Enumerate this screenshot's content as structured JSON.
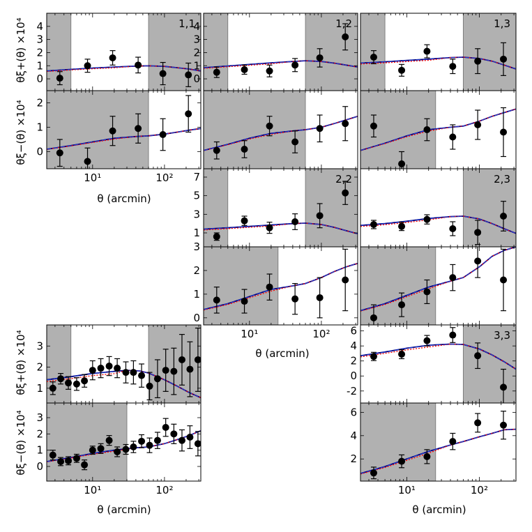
{
  "figure": {
    "xlabel": "θ (arcmin)",
    "ylabel_plus": "θξ+(θ) ×10⁴",
    "ylabel_minus": "θξ−(θ) ×10⁴"
  },
  "chart_data": [
    {
      "type": "scatter",
      "id": "p11",
      "title": "1,1",
      "row": "plus",
      "xlim": [
        2.3,
        320
      ],
      "ylim": [
        -0.9,
        5
      ],
      "yticks": [
        0,
        1,
        2,
        3,
        4
      ],
      "shade": [
        [
          2.3,
          5
        ],
        [
          60,
          320
        ]
      ],
      "x": [
        3.5,
        8.5,
        19,
        43,
        95,
        215
      ],
      "y": [
        0.05,
        1.0,
        1.6,
        1.05,
        0.4,
        0.3
      ],
      "err": [
        0.5,
        0.5,
        0.55,
        0.6,
        0.85,
        0.9
      ],
      "model_x": [
        2.3,
        5,
        10,
        20,
        40,
        60,
        100,
        150,
        220,
        320
      ],
      "model_y": [
        0.6,
        0.72,
        0.82,
        0.9,
        0.97,
        0.99,
        0.95,
        0.85,
        0.75,
        0.6
      ]
    },
    {
      "type": "scatter",
      "id": "m11",
      "row": "minus",
      "xlim": [
        2.3,
        320
      ],
      "ylim": [
        -0.7,
        2.5
      ],
      "yticks": [
        0,
        1,
        2
      ],
      "shade": [
        [
          2.3,
          60
        ]
      ],
      "x": [
        3.5,
        8.5,
        19,
        43,
        95,
        215
      ],
      "y": [
        -0.05,
        -0.4,
        0.85,
        0.95,
        0.7,
        1.55
      ],
      "err": [
        0.55,
        0.55,
        0.6,
        0.6,
        0.65,
        0.75
      ],
      "model_x": [
        2.3,
        5,
        10,
        20,
        40,
        60,
        100,
        150,
        220,
        320
      ],
      "model_y": [
        0.1,
        0.25,
        0.4,
        0.55,
        0.62,
        0.65,
        0.72,
        0.8,
        0.88,
        0.95
      ],
      "xticks": [
        10,
        100
      ],
      "xticklabels": [
        "10¹",
        "10²"
      ]
    },
    {
      "type": "scatter",
      "id": "p12",
      "title": "1,2",
      "row": "plus",
      "xlim": [
        2.3,
        320
      ],
      "ylim": [
        -0.9,
        5
      ],
      "yticks": [
        0,
        1,
        2,
        3,
        4
      ],
      "shade": [
        [
          2.3,
          5
        ],
        [
          60,
          320
        ]
      ],
      "x": [
        3.5,
        8.5,
        19,
        43,
        95,
        215
      ],
      "y": [
        0.5,
        0.7,
        0.6,
        1.05,
        1.6,
        3.2
      ],
      "err": [
        0.4,
        0.35,
        0.45,
        0.5,
        0.7,
        1.0
      ],
      "model_x": [
        2.3,
        5,
        10,
        20,
        40,
        60,
        100,
        150,
        220,
        320
      ],
      "model_y": [
        0.85,
        0.98,
        1.1,
        1.22,
        1.32,
        1.38,
        1.32,
        1.2,
        1.05,
        0.9
      ]
    },
    {
      "type": "scatter",
      "id": "m12",
      "row": "minus",
      "xlim": [
        2.3,
        320
      ],
      "ylim": [
        -0.7,
        2.5
      ],
      "yticks": [],
      "shade": [
        [
          2.3,
          60
        ]
      ],
      "x": [
        3.5,
        8.5,
        19,
        43,
        95,
        215
      ],
      "y": [
        0.05,
        0.1,
        1.05,
        0.4,
        0.95,
        1.15
      ],
      "err": [
        0.35,
        0.35,
        0.4,
        0.45,
        0.55,
        0.7
      ],
      "model_x": [
        2.3,
        5,
        10,
        20,
        40,
        60,
        100,
        150,
        220,
        320
      ],
      "model_y": [
        0.05,
        0.3,
        0.55,
        0.75,
        0.85,
        0.9,
        1.0,
        1.15,
        1.3,
        1.45
      ]
    },
    {
      "type": "scatter",
      "id": "p13",
      "title": "1,3",
      "row": "plus",
      "xlim": [
        2.3,
        320
      ],
      "ylim": [
        -0.9,
        5
      ],
      "yticks": [],
      "shade": [
        [
          2.3,
          5
        ],
        [
          60,
          320
        ]
      ],
      "x": [
        3.5,
        8.5,
        19,
        43,
        95,
        215
      ],
      "y": [
        1.65,
        0.65,
        2.1,
        0.95,
        1.35,
        1.5
      ],
      "err": [
        0.5,
        0.45,
        0.5,
        0.55,
        0.95,
        1.25
      ],
      "model_x": [
        2.3,
        5,
        10,
        20,
        40,
        60,
        100,
        150,
        220,
        320
      ],
      "model_y": [
        1.2,
        1.3,
        1.4,
        1.5,
        1.62,
        1.65,
        1.55,
        1.35,
        1.05,
        0.75
      ]
    },
    {
      "type": "scatter",
      "id": "m13",
      "row": "minus",
      "xlim": [
        2.3,
        320
      ],
      "ylim": [
        -0.7,
        2.5
      ],
      "yticks": [],
      "shade": [
        [
          2.3,
          25
        ]
      ],
      "x": [
        3.5,
        8.5,
        19,
        43,
        95,
        215
      ],
      "y": [
        1.05,
        -0.5,
        0.9,
        0.6,
        1.1,
        0.8
      ],
      "err": [
        0.45,
        0.5,
        0.45,
        0.5,
        0.6,
        1.0
      ],
      "model_x": [
        2.3,
        5,
        10,
        20,
        40,
        60,
        100,
        150,
        220,
        320
      ],
      "model_y": [
        0.05,
        0.35,
        0.65,
        0.9,
        1.0,
        1.05,
        1.25,
        1.45,
        1.6,
        1.75
      ]
    },
    {
      "type": "scatter",
      "id": "p22",
      "title": "2,2",
      "row": "plus",
      "xlim": [
        2.3,
        320
      ],
      "ylim": [
        -0.5,
        7.9
      ],
      "yticks": [
        1,
        3,
        5,
        7
      ],
      "shade": [
        [
          2.3,
          5
        ],
        [
          60,
          320
        ]
      ],
      "x": [
        3.5,
        8.5,
        19,
        43,
        95,
        215
      ],
      "y": [
        0.6,
        2.3,
        1.55,
        2.2,
        2.85,
        5.3
      ],
      "err": [
        0.4,
        0.5,
        0.6,
        0.85,
        1.3,
        1.25
      ],
      "model_x": [
        2.3,
        5,
        10,
        20,
        40,
        60,
        100,
        150,
        220,
        320
      ],
      "model_y": [
        1.4,
        1.55,
        1.7,
        1.85,
        2.0,
        2.05,
        1.9,
        1.6,
        1.25,
        0.9
      ]
    },
    {
      "type": "scatter",
      "id": "m22",
      "row": "minus",
      "xlim": [
        2.3,
        320
      ],
      "ylim": [
        -0.3,
        3.0
      ],
      "yticks": [
        0,
        1,
        2,
        3
      ],
      "ytickslabels": [
        "0",
        "1",
        "2",
        "3"
      ],
      "shade": [
        [
          2.3,
          25
        ]
      ],
      "x": [
        3.5,
        8.5,
        19,
        43,
        95,
        215
      ],
      "y": [
        0.75,
        0.7,
        1.3,
        0.8,
        0.85,
        1.6
      ],
      "err": [
        0.55,
        0.5,
        0.55,
        0.65,
        0.85,
        1.3
      ],
      "model_x": [
        2.3,
        5,
        10,
        20,
        40,
        60,
        100,
        150,
        220,
        320
      ],
      "model_y": [
        0.35,
        0.6,
        0.9,
        1.2,
        1.35,
        1.45,
        1.7,
        1.95,
        2.15,
        2.3
      ],
      "xticks": [
        10,
        100
      ],
      "xticklabels": [
        "10¹",
        "10²"
      ]
    },
    {
      "type": "scatter",
      "id": "p23",
      "title": "2,3",
      "row": "plus",
      "xlim": [
        2.3,
        320
      ],
      "ylim": [
        -0.5,
        7.9
      ],
      "yticks": [],
      "shade": [
        [
          60,
          320
        ]
      ],
      "x": [
        3.5,
        8.5,
        19,
        43,
        95,
        215
      ],
      "y": [
        1.9,
        1.7,
        2.45,
        1.45,
        1.05,
        2.8
      ],
      "err": [
        0.45,
        0.45,
        0.5,
        0.75,
        1.3,
        1.6
      ],
      "model_x": [
        2.3,
        5,
        10,
        20,
        40,
        60,
        100,
        150,
        220,
        320
      ],
      "model_y": [
        1.8,
        2.0,
        2.25,
        2.55,
        2.75,
        2.8,
        2.5,
        2.0,
        1.45,
        0.95
      ]
    },
    {
      "type": "scatter",
      "id": "m23",
      "row": "minus",
      "xlim": [
        2.3,
        320
      ],
      "ylim": [
        -0.3,
        3.0
      ],
      "yticks": [],
      "shade": [
        [
          2.3,
          25
        ]
      ],
      "x": [
        3.5,
        8.5,
        19,
        43,
        95,
        215
      ],
      "y": [
        0.0,
        0.55,
        1.1,
        1.7,
        2.4,
        1.6
      ],
      "err": [
        0.55,
        0.5,
        0.5,
        0.55,
        0.7,
        1.3
      ],
      "model_x": [
        2.3,
        5,
        10,
        20,
        40,
        60,
        100,
        150,
        220,
        320
      ],
      "model_y": [
        0.3,
        0.6,
        0.95,
        1.3,
        1.55,
        1.7,
        2.15,
        2.6,
        2.85,
        3.0
      ]
    },
    {
      "type": "scatter",
      "id": "p33",
      "title": "3,3",
      "row": "plus",
      "xlim": [
        2.3,
        320
      ],
      "ylim": [
        -3.6,
        6.8
      ],
      "yticks": [
        -2,
        0,
        2,
        4,
        6
      ],
      "shade": [
        [
          60,
          320
        ]
      ],
      "x": [
        3.5,
        8.5,
        19,
        43,
        95,
        215
      ],
      "y": [
        2.6,
        2.9,
        4.7,
        5.45,
        2.7,
        -1.5
      ],
      "err": [
        0.55,
        0.6,
        0.7,
        1.0,
        1.7,
        2.4
      ],
      "model_x": [
        2.3,
        5,
        10,
        20,
        40,
        60,
        100,
        150,
        220,
        320
      ],
      "model_y": [
        2.7,
        3.2,
        3.7,
        4.1,
        4.25,
        4.2,
        3.6,
        2.8,
        1.9,
        0.9
      ]
    },
    {
      "type": "scatter",
      "id": "m33",
      "row": "minus",
      "xlim": [
        2.3,
        320
      ],
      "ylim": [
        0.1,
        6.8
      ],
      "yticks": [
        2,
        4,
        6
      ],
      "shade": [
        [
          2.3,
          25
        ]
      ],
      "x": [
        3.5,
        8.5,
        19,
        43,
        95,
        215
      ],
      "y": [
        0.8,
        1.8,
        2.2,
        3.5,
        5.1,
        4.9
      ],
      "err": [
        0.5,
        0.55,
        0.6,
        0.7,
        0.8,
        1.2
      ],
      "model_x": [
        2.3,
        5,
        10,
        20,
        40,
        60,
        100,
        150,
        220,
        320
      ],
      "model_y": [
        0.75,
        1.35,
        2.0,
        2.65,
        3.2,
        3.5,
        3.9,
        4.2,
        4.5,
        4.55
      ],
      "xticks": [
        10,
        100
      ],
      "xticklabels": [
        "10¹",
        "10²"
      ]
    },
    {
      "type": "scatter",
      "id": "pTOT",
      "row": "plus",
      "xlim": [
        2.3,
        320
      ],
      "ylim": [
        0.3,
        4.0
      ],
      "yticks": [
        1,
        2,
        3
      ],
      "shade": [
        [
          2.3,
          5
        ],
        [
          60,
          320
        ]
      ],
      "x": [
        2.8,
        3.6,
        4.6,
        6.0,
        7.7,
        10,
        13,
        17,
        22,
        29,
        37,
        48,
        62,
        80,
        104,
        135,
        175,
        226,
        292
      ],
      "y": [
        1.0,
        1.45,
        1.25,
        1.2,
        1.35,
        1.85,
        1.95,
        2.05,
        1.95,
        1.75,
        1.75,
        1.6,
        1.1,
        1.45,
        1.85,
        1.8,
        2.35,
        1.9,
        2.35
      ],
      "err": [
        0.3,
        0.25,
        0.3,
        0.3,
        0.3,
        0.45,
        0.45,
        0.45,
        0.45,
        0.5,
        0.55,
        0.55,
        0.65,
        0.9,
        1.0,
        1.1,
        1.2,
        1.3,
        1.5
      ],
      "model_x": [
        2.3,
        5,
        10,
        20,
        30,
        45,
        60,
        100,
        150,
        220,
        320
      ],
      "model_y": [
        1.4,
        1.55,
        1.7,
        1.8,
        1.85,
        1.82,
        1.72,
        1.4,
        1.1,
        0.8,
        0.55
      ]
    },
    {
      "type": "scatter",
      "id": "mTOT",
      "row": "minus",
      "xlim": [
        2.3,
        320
      ],
      "ylim": [
        -0.9,
        3.9
      ],
      "yticks": [
        0,
        1,
        2,
        3
      ],
      "shade": [
        [
          2.3,
          30
        ]
      ],
      "x": [
        2.8,
        3.6,
        4.6,
        6.0,
        7.7,
        10,
        13,
        17,
        22,
        29,
        37,
        48,
        62,
        80,
        104,
        135,
        175,
        226,
        292
      ],
      "y": [
        0.7,
        0.3,
        0.35,
        0.5,
        0.1,
        1.0,
        1.1,
        1.6,
        0.9,
        1.05,
        1.2,
        1.55,
        1.3,
        1.6,
        2.4,
        2.0,
        1.6,
        1.8,
        1.4
      ],
      "err": [
        0.3,
        0.25,
        0.25,
        0.25,
        0.3,
        0.25,
        0.3,
        0.3,
        0.3,
        0.3,
        0.35,
        0.4,
        0.45,
        0.5,
        0.55,
        0.6,
        0.65,
        0.7,
        0.75
      ],
      "model_x": [
        2.3,
        5,
        10,
        20,
        40,
        60,
        100,
        150,
        220,
        320
      ],
      "model_y": [
        0.3,
        0.55,
        0.8,
        1.0,
        1.15,
        1.2,
        1.4,
        1.65,
        1.9,
        2.2
      ],
      "xticks": [
        10,
        100
      ],
      "xticklabels": [
        "10¹",
        "10²"
      ]
    }
  ]
}
